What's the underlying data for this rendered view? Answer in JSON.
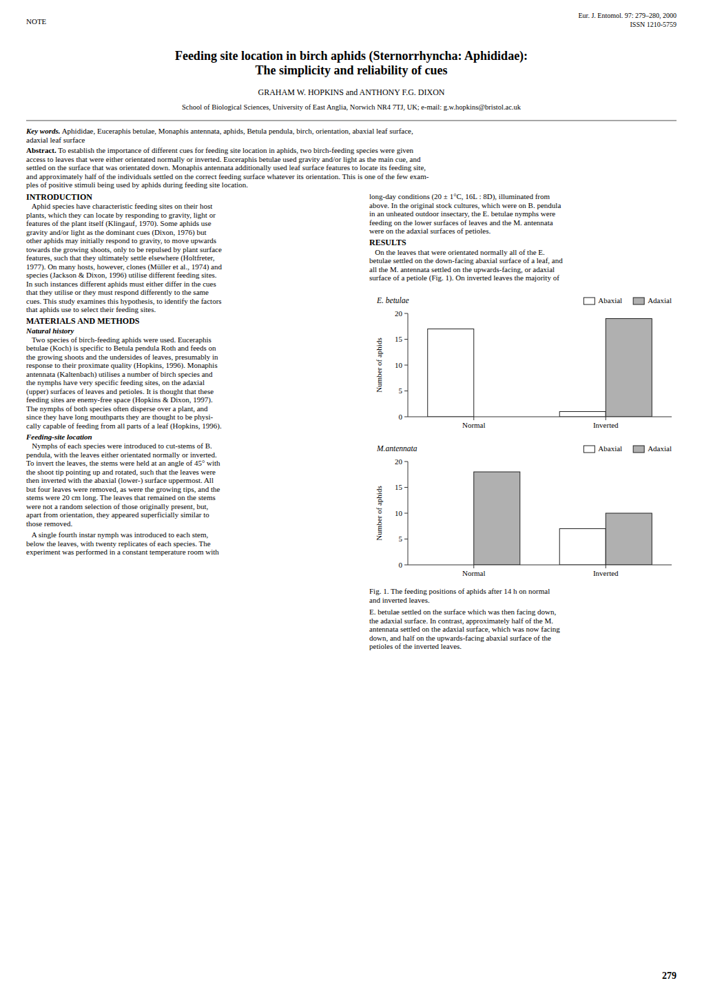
{
  "texts": {
    "journal_line1": "Eur. J. Entomol. 97: 279–280, 2000",
    "journal_line2": "ISSN 1210-5759",
    "note_label": "NOTE",
    "title_line1": "Feeding site location in birch aphids (Sternorrhyncha: Aphididae):",
    "title_line2": "The simplicity and reliability of cues",
    "authors": "GRAHAM W. HOPKINS and ANTHONY F.G. DIXON",
    "affiliation": "School of Biological Sciences, University of East Anglia, Norwich NR4 7TJ, UK; e-mail: g.w.hopkins@bristol.ac.uk",
    "kw_label": "Key words.",
    "kw_line1": " Aphididae, Euceraphis betulae, Monaphis antennata, aphids, Betula pendula, birch, orientation, abaxial leaf surface,",
    "kw_line2": "adaxial leaf surface",
    "abs_label": "Abstract.",
    "abs_lines": [
      " To establish the importance of different cues for feeding site location in aphids, two birch-feeding species were given",
      "access to leaves that were either orientated normally or inverted. Euceraphis betulae used gravity and/or light as the main cue, and",
      "settled on the surface that was orientated down. Monaphis antennata additionally used leaf surface features to locate its feeding site,",
      "and approximately half of the individuals settled on the correct feeding surface whatever its orientation. This is one of the few exam-",
      "ples of positive stimuli being used by aphids during feeding site location."
    ],
    "intro_title": "INTRODUCTION",
    "intro_lines": [
      "   Aphid species have characteristic feeding sites on their host",
      "plants, which they can locate by responding to gravity, light or",
      "features of the plant itself (Klingauf, 1970). Some aphids use",
      "gravity and/or light as the dominant cues (Dixon, 1976) but",
      "other aphids may initially respond to gravity, to move upwards",
      "towards the growing shoots, only to be repulsed by plant surface",
      "features, such that they ultimately settle elsewhere (Holtfreter,",
      "1977). On many hosts, however, clones (Müller et al., 1974) and",
      "species (Jackson & Dixon, 1996) utilise different feeding sites.",
      "In such instances different aphids must either differ in the cues",
      "that they utilise or they must respond differently to the same",
      "cues. This study examines this hypothesis, to identify the factors",
      "that aphids use to select their feeding sites."
    ],
    "mm_title": "MATERIALS AND METHODS",
    "nh_title": "Natural history",
    "nh_lines": [
      "   Two species of birch-feeding aphids were used. Euceraphis",
      "betulae (Koch) is specific to Betula pendula Roth and feeds on",
      "the growing shoots and the undersides of leaves, presumably in",
      "response to their proximate quality (Hopkins, 1996). Monaphis",
      "antennata (Kaltenbach) utilises a number of birch species and",
      "the nymphs have very specific feeding sites, on the adaxial",
      "(upper) surfaces of leaves and petioles. It is thought that these",
      "feeding sites are enemy-free space (Hopkins & Dixon, 1997).",
      "The nymphs of both species often disperse over a plant, and",
      "since they have long mouthparts they are thought to be physi-",
      "cally capable of feeding from all parts of a leaf (Hopkins, 1996)."
    ],
    "fsl_title": "Feeding-site location",
    "fsl_lines": [
      "   Nymphs of each species were introduced to cut-stems of B.",
      "pendula, with the leaves either orientated normally or inverted.",
      "To invert the leaves, the stems were held at an angle of 45° with",
      "the shoot tip pointing up and rotated, such that the leaves were",
      "then inverted with the abaxial (lower-) surface uppermost. All",
      "but four leaves were removed, as were the growing tips, and the",
      "stems were 20 cm long. The leaves that remained on the stems",
      "were not a random selection of those originally present, but,",
      "apart from orientation, they appeared superficially similar to",
      "those removed."
    ],
    "fsl_lines2": [
      "   A single fourth instar nymph was introduced to each stem,",
      "below the leaves, with twenty replicates of each species. The",
      "experiment was performed in a constant temperature room with"
    ],
    "rc_lines1": [
      "long-day conditions (20 ± 1°C, 16L : 8D), illuminated from",
      "above. In the original stock cultures, which were on B. pendula",
      "in an unheated outdoor insectary, the E. betulae nymphs were",
      "feeding on the lower surfaces of leaves and the M. antennata",
      "were on the adaxial surfaces of petioles."
    ],
    "results_title": "RESULTS",
    "results_lines": [
      "   On the leaves that were orientated normally all of the E.",
      "betulae settled on the down-facing abaxial surface of a leaf, and",
      "all the M. antennata settled on the upwards-facing, or adaxial",
      "surface of a petiole (Fig. 1). On inverted leaves the majority of"
    ],
    "fig_caption": [
      "Fig. 1. The feeding positions of aphids after 14 h on normal",
      "and inverted leaves."
    ],
    "rc_lines2": [
      "E. betulae settled on the surface which was then facing down,",
      "the adaxial surface. In contrast, approximately half of the M.",
      "antennata settled on the adaxial surface, which was now facing",
      "down, and half on the upwards-facing abaxial surface of the",
      "petioles of the inverted leaves."
    ],
    "page_number": "279"
  },
  "chart_data": [
    {
      "type": "bar",
      "title": "E. betulae",
      "categories": [
        "Normal",
        "Inverted"
      ],
      "series": [
        {
          "name": "Abaxial",
          "color": "#ffffff",
          "values": [
            17,
            1
          ]
        },
        {
          "name": "Adaxial",
          "color": "#b0b0b0",
          "values": [
            0,
            19
          ]
        }
      ],
      "ylabel": "Number of aphids",
      "ylim": [
        0,
        20
      ],
      "yticks": [
        0,
        5,
        10,
        15,
        20
      ],
      "legend": "upper right"
    },
    {
      "type": "bar",
      "title": "M.antennata",
      "categories": [
        "Normal",
        "Inverted"
      ],
      "series": [
        {
          "name": "Abaxial",
          "color": "#ffffff",
          "values": [
            0,
            7
          ]
        },
        {
          "name": "Adaxial",
          "color": "#b0b0b0",
          "values": [
            18,
            10
          ]
        }
      ],
      "ylabel": "Number of aphids",
      "ylim": [
        0,
        20
      ],
      "yticks": [
        0,
        5,
        10,
        15,
        20
      ],
      "legend": "upper right"
    }
  ]
}
